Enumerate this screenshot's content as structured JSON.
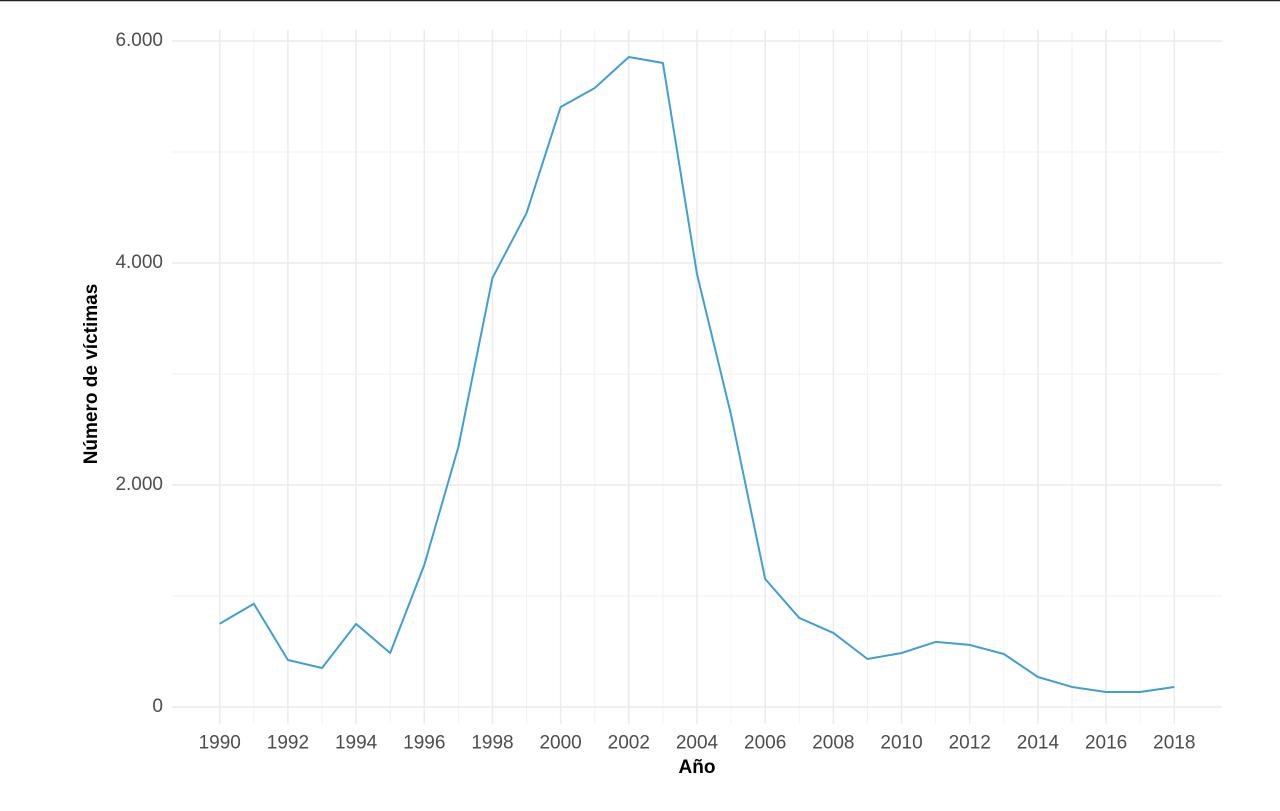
{
  "chart_data": {
    "type": "line",
    "x_label": "Año",
    "y_label": "Número de víctimas",
    "x": [
      1990,
      1991,
      1992,
      1993,
      1994,
      1995,
      1996,
      1997,
      1998,
      1999,
      2000,
      2001,
      2002,
      2003,
      2004,
      2005,
      2006,
      2007,
      2008,
      2009,
      2010,
      2011,
      2012,
      2013,
      2014,
      2015,
      2016,
      2017,
      2018
    ],
    "series": [
      {
        "color": "#3f9fd6",
        "values": [
          750,
          930,
          423,
          351,
          748,
          486,
          1279,
          2342,
          3865,
          4450,
          5405,
          5577,
          5856,
          5802,
          3900,
          2630,
          1153,
          802,
          667,
          432,
          486,
          586,
          559,
          477,
          270,
          180,
          135,
          135,
          180
        ]
      }
    ],
    "xlim": [
      1988.6,
      2019.4
    ],
    "ylim": [
      -150,
      6100
    ],
    "xticks": [
      1990,
      1992,
      1994,
      1996,
      1998,
      2000,
      2002,
      2004,
      2006,
      2008,
      2010,
      2012,
      2014,
      2016,
      2018
    ],
    "yticks": [
      0,
      {
        "value": 2000,
        "label": "2.000"
      },
      {
        "value": 4000,
        "label": "4.000"
      },
      {
        "value": 6000,
        "label": "6.000"
      }
    ],
    "grid": true
  }
}
